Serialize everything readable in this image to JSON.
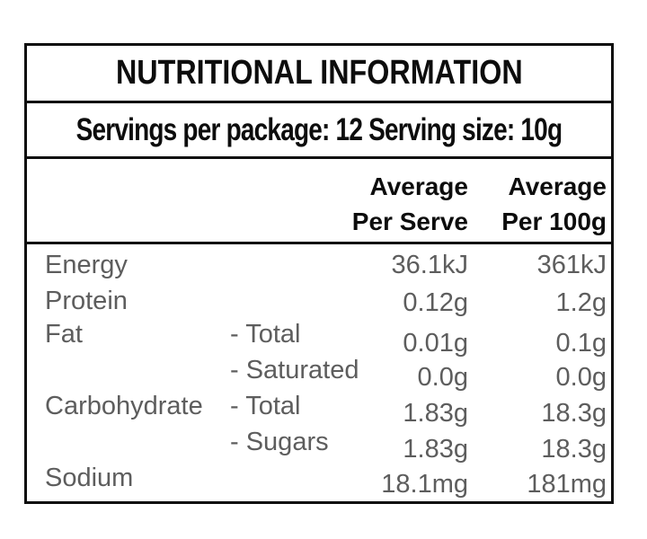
{
  "panel": {
    "title": "NUTRITIONAL INFORMATION",
    "servings_line": "Servings per package: 12 Serving size: 10g",
    "servings_per_package": "12",
    "serving_size": "10g",
    "columns": {
      "per_serve": {
        "line1": "Average",
        "line2": "Per Serve"
      },
      "per_100g": {
        "line1": "Average",
        "line2": "Per 100g"
      }
    },
    "rows": [
      {
        "nutrient": "Energy",
        "sub": "",
        "per_serve": "36.1kJ",
        "per_100g": "361kJ"
      },
      {
        "nutrient": "Protein",
        "sub": "",
        "per_serve": "0.12g",
        "per_100g": "1.2g"
      },
      {
        "nutrient": "Fat",
        "sub": "- Total",
        "per_serve": "0.01g",
        "per_100g": "0.1g"
      },
      {
        "nutrient": "",
        "sub": "- Saturated",
        "per_serve": "0.0g",
        "per_100g": "0.0g"
      },
      {
        "nutrient": "Carbohydrate",
        "sub": "- Total",
        "per_serve": "1.83g",
        "per_100g": "18.3g"
      },
      {
        "nutrient": "",
        "sub": "- Sugars",
        "per_serve": "1.83g",
        "per_100g": "18.3g"
      },
      {
        "nutrient": "Sodium",
        "sub": "",
        "per_serve": "18.1mg",
        "per_100g": "181mg"
      }
    ],
    "colors": {
      "text_primary": "#0d0d0d",
      "text_secondary": "#5d5d5d",
      "border": "#0d0d0d",
      "background": "#ffffff"
    }
  }
}
